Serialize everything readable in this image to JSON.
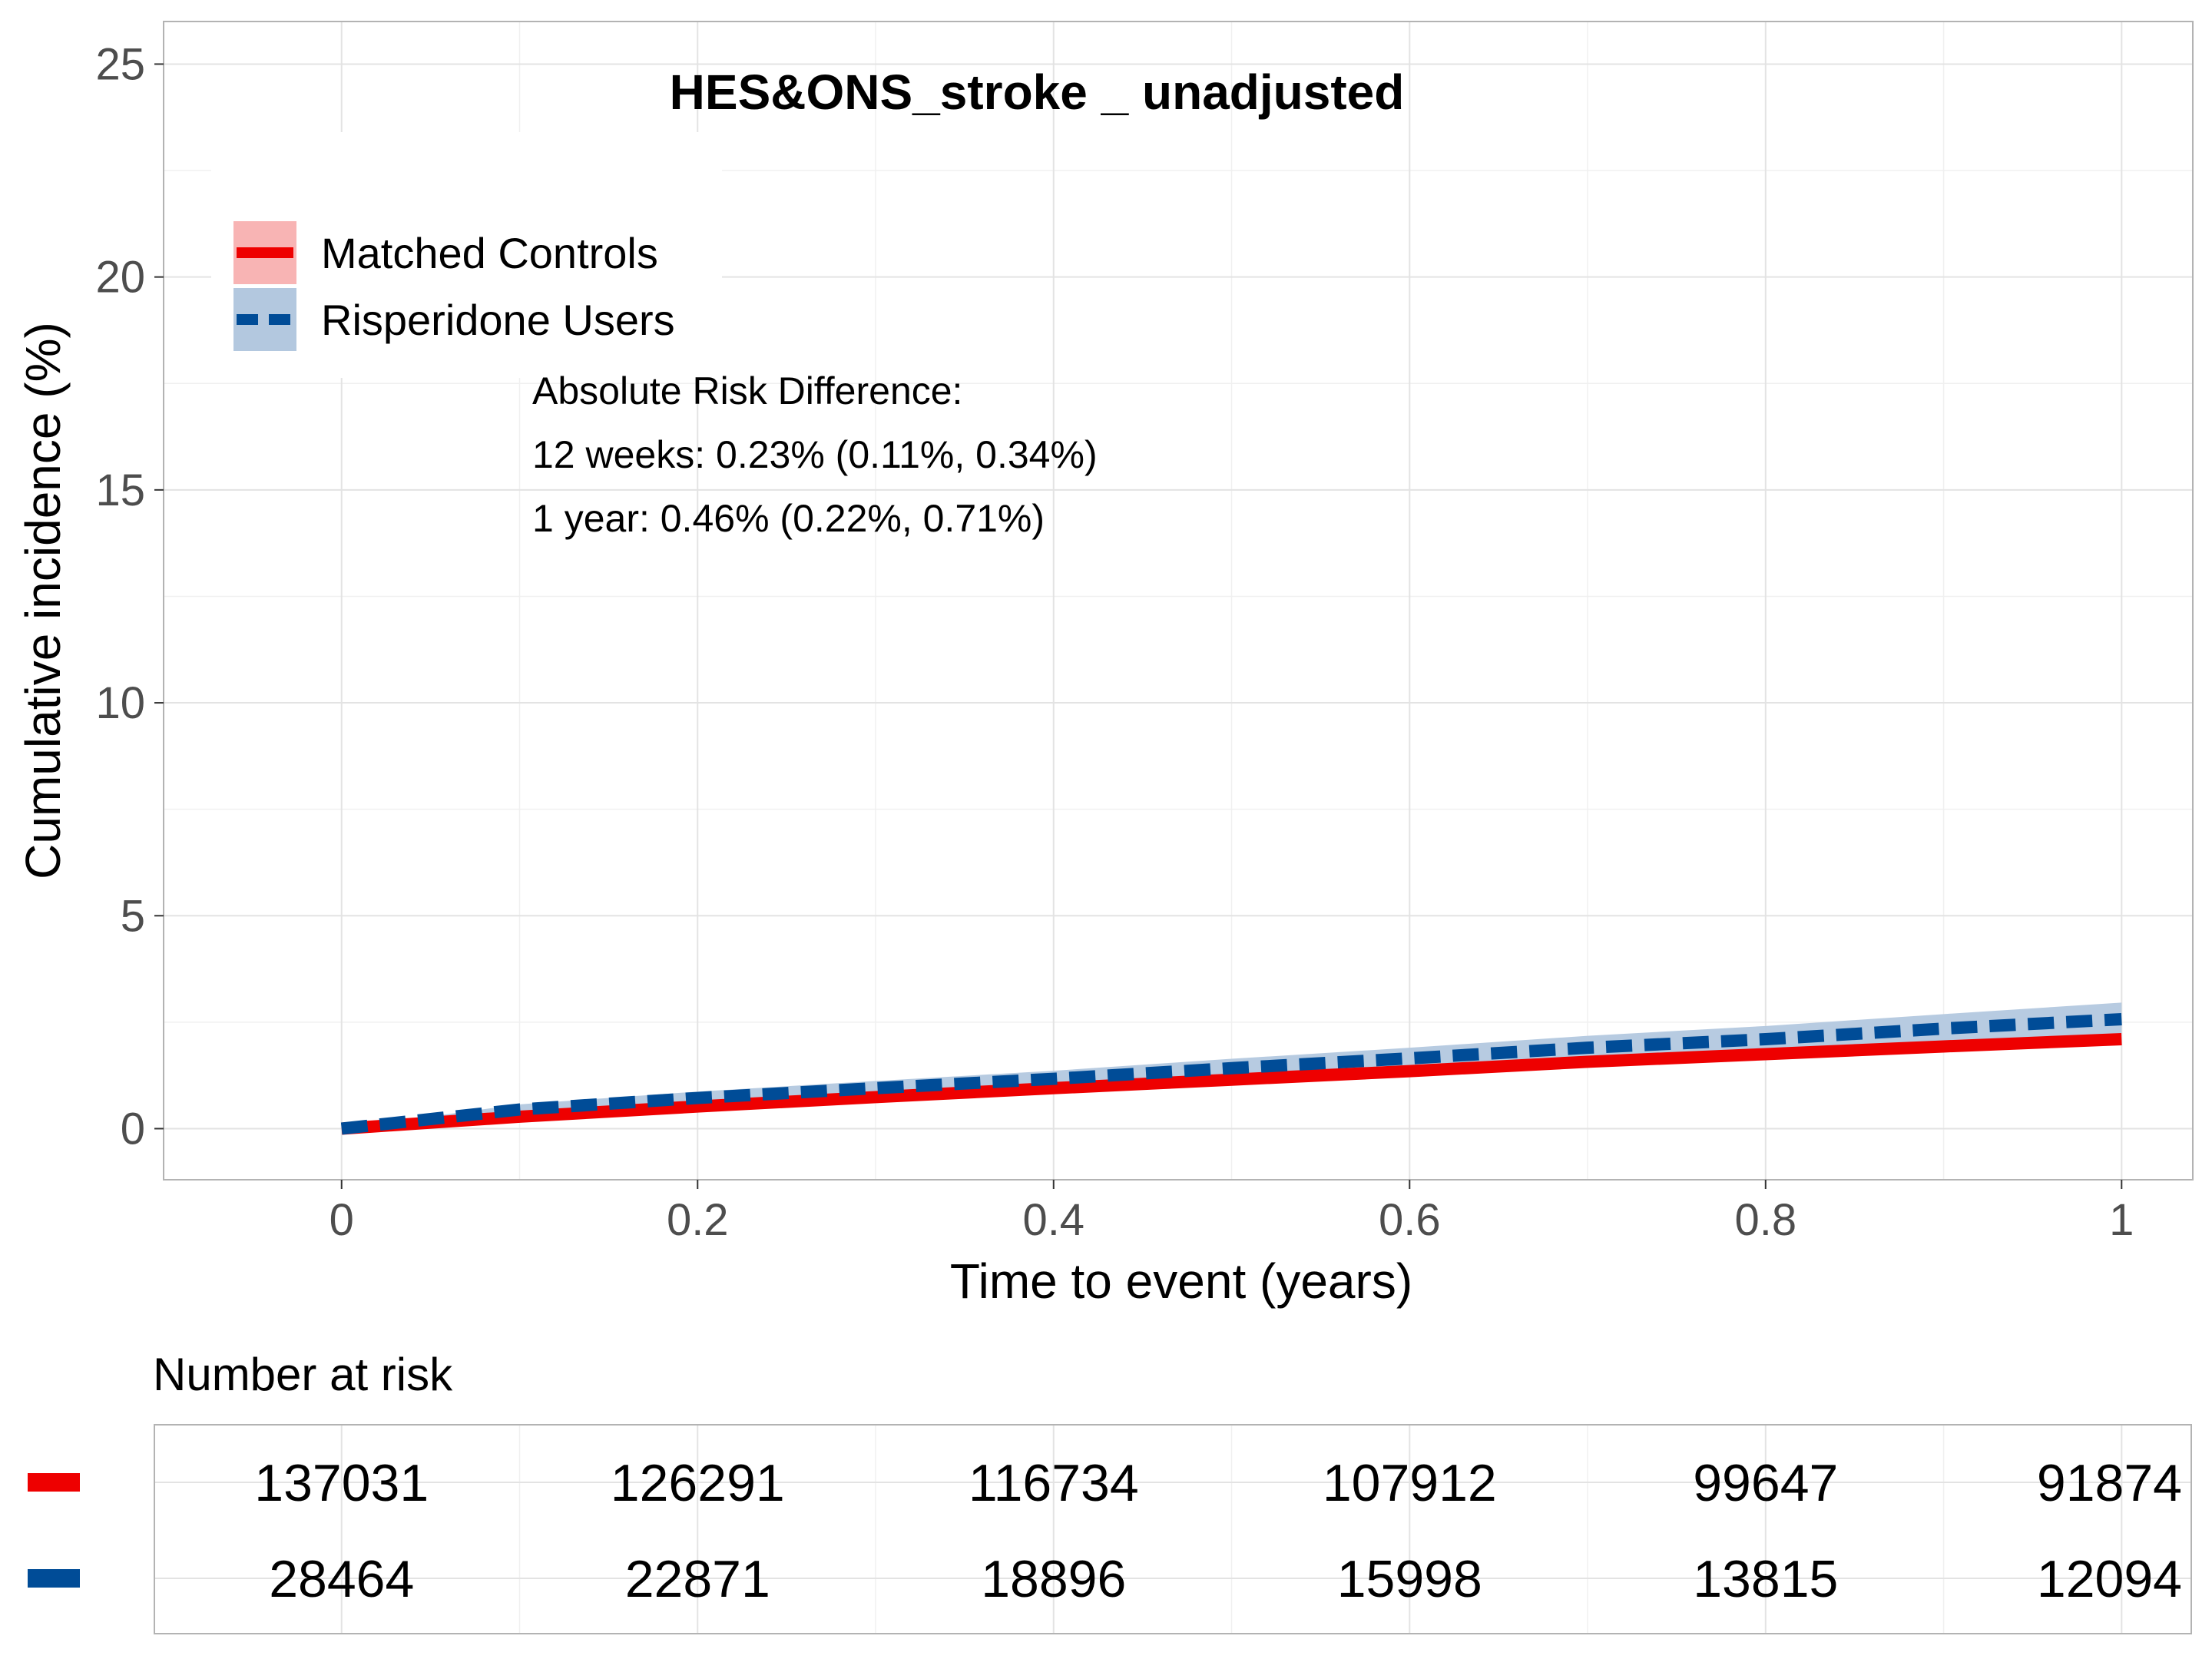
{
  "chart_data": {
    "type": "line",
    "title": "HES&ONS_stroke _ unadjusted",
    "xlabel": "Time to event (years)",
    "ylabel": "Cumulative incidence (%)",
    "xlim": [
      -0.1,
      1.04
    ],
    "ylim": [
      -1.2,
      26
    ],
    "x_ticks": [
      0,
      0.2,
      0.4,
      0.6,
      0.8,
      1
    ],
    "x_tick_labels": [
      "0",
      "0.2",
      "0.4",
      "0.6",
      "0.8",
      "1"
    ],
    "y_ticks": [
      0,
      5,
      10,
      15,
      20,
      25
    ],
    "y_tick_labels": [
      "0",
      "5",
      "10",
      "15",
      "20",
      "25"
    ],
    "grid": true,
    "legend_position": "top-left",
    "series": [
      {
        "name": "Matched Controls",
        "color": "#ee0000",
        "band_color": "#f8b4b4",
        "line_style": "solid",
        "x": [
          0,
          0.1,
          0.2,
          0.3,
          0.4,
          0.5,
          0.6,
          0.7,
          0.8,
          0.9,
          1.0
        ],
        "y": [
          0,
          0.28,
          0.52,
          0.74,
          0.95,
          1.15,
          1.35,
          1.57,
          1.75,
          1.93,
          2.1
        ],
        "lower": [
          0,
          0.25,
          0.48,
          0.69,
          0.89,
          1.08,
          1.27,
          1.48,
          1.65,
          1.82,
          1.98
        ],
        "upper": [
          0,
          0.31,
          0.56,
          0.79,
          1.01,
          1.22,
          1.43,
          1.66,
          1.85,
          2.04,
          2.22
        ]
      },
      {
        "name": "Risperidone Users",
        "color": "#004c97",
        "band_color": "#b3c8df",
        "line_style": "dashed",
        "x": [
          0,
          0.1,
          0.2,
          0.3,
          0.4,
          0.5,
          0.6,
          0.7,
          0.8,
          0.9,
          1.0
        ],
        "y": [
          0,
          0.45,
          0.72,
          0.95,
          1.17,
          1.42,
          1.65,
          1.9,
          2.1,
          2.35,
          2.57
        ],
        "lower": [
          0,
          0.33,
          0.57,
          0.78,
          0.98,
          1.2,
          1.4,
          1.62,
          1.79,
          2.01,
          2.18
        ],
        "upper": [
          0,
          0.57,
          0.87,
          1.12,
          1.36,
          1.64,
          1.9,
          2.18,
          2.41,
          2.69,
          2.96
        ]
      }
    ],
    "annotations": [
      "Absolute Risk Difference:",
      "12 weeks: 0.23% (0.11%, 0.34%)",
      "1 year: 0.46% (0.22%, 0.71%)"
    ],
    "risk_table": {
      "title": "Number at risk",
      "times": [
        0,
        0.2,
        0.4,
        0.6,
        0.8,
        1
      ],
      "rows": [
        {
          "color": "#ee0000",
          "values": [
            "137031",
            "126291",
            "116734",
            "107912",
            "99647",
            "91874"
          ]
        },
        {
          "color": "#004c97",
          "values": [
            "28464",
            "22871",
            "18896",
            "15998",
            "13815",
            "12094"
          ]
        }
      ]
    }
  }
}
